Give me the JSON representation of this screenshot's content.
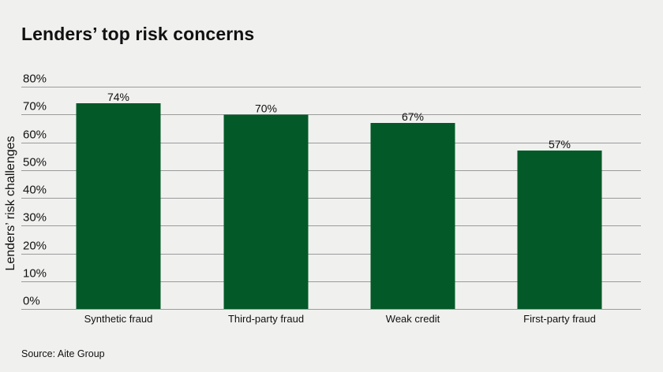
{
  "title": "Lenders’ top risk concerns",
  "source": "Source: Aite Group",
  "colors": {
    "background": "#f0f1ef",
    "bar": "#035a28",
    "grid": "#9a9a9a",
    "text": "#111111"
  },
  "chart_data": {
    "type": "bar",
    "title": "Lenders’ top risk concerns",
    "ylabel": "Lenders’ risk challenges",
    "xlabel": "",
    "categories": [
      "Synthetic fraud",
      "Third-party fraud",
      "Weak credit",
      "First-party fraud"
    ],
    "values": [
      74,
      70,
      67,
      57
    ],
    "value_labels": [
      "74%",
      "70%",
      "67%",
      "57%"
    ],
    "ylim": [
      0,
      80
    ],
    "yticks": [
      0,
      10,
      20,
      30,
      40,
      50,
      60,
      70,
      80
    ],
    "ytick_labels": [
      "0%",
      "10%",
      "20%",
      "30%",
      "40%",
      "50%",
      "60%",
      "70%",
      "80%"
    ],
    "grid": true,
    "legend": "none"
  }
}
